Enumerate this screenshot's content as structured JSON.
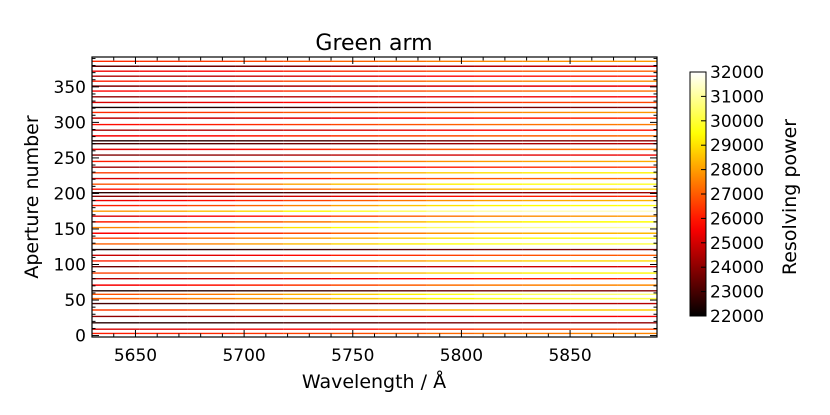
{
  "chart_data": {
    "type": "heatmap",
    "title": "Green arm",
    "xlabel": "Wavelength / Å",
    "ylabel": "Aperture number",
    "xlim": [
      5630,
      5890
    ],
    "ylim": [
      -2,
      392
    ],
    "xticks": [
      5650,
      5700,
      5750,
      5800,
      5850
    ],
    "yticks": [
      0,
      50,
      100,
      150,
      200,
      250,
      300,
      350
    ],
    "grid": false,
    "colorbar": {
      "label": "Resolving power",
      "colormap": "hot",
      "range": [
        22000,
        32000
      ],
      "ticks": [
        22000,
        23000,
        24000,
        25000,
        26000,
        27000,
        28000,
        29000,
        30000,
        31000,
        32000
      ]
    },
    "wavelength_samples": [
      5630,
      5652,
      5674,
      5696,
      5718,
      5740,
      5762,
      5784,
      5806,
      5828,
      5850,
      5872,
      5890
    ],
    "apertures": [
      {
        "aperture": 3,
        "resolving_power": [
          26000,
          26100,
          26200,
          26300,
          26500,
          26700,
          26900,
          27100,
          27300,
          27400,
          27500,
          27600,
          27600
        ]
      },
      {
        "aperture": 9,
        "resolving_power": [
          25000,
          25100,
          25200,
          25300,
          25500,
          25700,
          25900,
          26100,
          26300,
          26400,
          26500,
          26600,
          26600
        ]
      },
      {
        "aperture": 18,
        "resolving_power": [
          22500,
          22600,
          22700,
          22800,
          23000,
          23200,
          23400,
          23600,
          23800,
          23900,
          24000,
          24100,
          24100
        ]
      },
      {
        "aperture": 27,
        "resolving_power": [
          24000,
          24100,
          24200,
          24300,
          24500,
          24700,
          24900,
          25100,
          25300,
          25400,
          25500,
          25600,
          25600
        ]
      },
      {
        "aperture": 36,
        "resolving_power": [
          26500,
          26600,
          26800,
          27000,
          27300,
          27600,
          27900,
          28200,
          28400,
          28500,
          28600,
          28700,
          28700
        ]
      },
      {
        "aperture": 45,
        "resolving_power": [
          23000,
          23100,
          23200,
          23300,
          23500,
          23700,
          23900,
          24100,
          24300,
          24400,
          24500,
          24600,
          24600
        ]
      },
      {
        "aperture": 52,
        "resolving_power": [
          27000,
          27200,
          27400,
          27700,
          28000,
          28400,
          28800,
          29200,
          29600,
          29800,
          30000,
          30100,
          30100
        ]
      },
      {
        "aperture": 58,
        "resolving_power": [
          26800,
          27000,
          27300,
          27600,
          28000,
          28500,
          29000,
          29500,
          30000,
          30300,
          30500,
          30600,
          30600
        ]
      },
      {
        "aperture": 63,
        "resolving_power": [
          22300,
          22400,
          22500,
          22600,
          22800,
          23000,
          23200,
          23400,
          23600,
          23700,
          23800,
          23900,
          23900
        ]
      },
      {
        "aperture": 71,
        "resolving_power": [
          25500,
          25600,
          25800,
          26000,
          26300,
          26600,
          26900,
          27200,
          27400,
          27500,
          27600,
          27700,
          27700
        ]
      },
      {
        "aperture": 80,
        "resolving_power": [
          24500,
          24600,
          24700,
          24900,
          25100,
          25300,
          25500,
          25700,
          25900,
          26000,
          26100,
          26200,
          26200
        ]
      },
      {
        "aperture": 88,
        "resolving_power": [
          26500,
          26700,
          26900,
          27200,
          27500,
          27900,
          28300,
          28700,
          29000,
          29200,
          29300,
          29400,
          29400
        ]
      },
      {
        "aperture": 97,
        "resolving_power": [
          23500,
          23600,
          23700,
          23800,
          24000,
          24200,
          24400,
          24600,
          24800,
          24900,
          25000,
          25100,
          25100
        ]
      },
      {
        "aperture": 105,
        "resolving_power": [
          26000,
          26200,
          26400,
          26700,
          27000,
          27400,
          27800,
          28200,
          28500,
          28700,
          28800,
          28900,
          28900
        ]
      },
      {
        "aperture": 113,
        "resolving_power": [
          24800,
          24900,
          25100,
          25300,
          25600,
          25900,
          26200,
          26500,
          26700,
          26800,
          26900,
          27000,
          27000
        ]
      },
      {
        "aperture": 121,
        "resolving_power": [
          22400,
          22500,
          22600,
          22700,
          22900,
          23100,
          23300,
          23500,
          23700,
          23800,
          23900,
          24000,
          24000
        ]
      },
      {
        "aperture": 129,
        "resolving_power": [
          27000,
          27200,
          27500,
          27800,
          28200,
          28600,
          29000,
          29400,
          29700,
          29900,
          30000,
          30100,
          30100
        ]
      },
      {
        "aperture": 137,
        "resolving_power": [
          26500,
          26700,
          27000,
          27300,
          27700,
          28100,
          28500,
          28900,
          29200,
          29400,
          29500,
          29600,
          29600
        ]
      },
      {
        "aperture": 144,
        "resolving_power": [
          25500,
          25700,
          25900,
          26200,
          26500,
          26900,
          27300,
          27700,
          28000,
          28200,
          28300,
          28400,
          28400
        ]
      },
      {
        "aperture": 152,
        "resolving_power": [
          27500,
          27700,
          28000,
          28400,
          28800,
          29300,
          29800,
          30300,
          30700,
          30900,
          31000,
          31100,
          31100
        ]
      },
      {
        "aperture": 160,
        "resolving_power": [
          26000,
          26200,
          26500,
          26800,
          27200,
          27700,
          28200,
          28700,
          29100,
          29300,
          29400,
          29500,
          29500
        ]
      },
      {
        "aperture": 168,
        "resolving_power": [
          25000,
          25200,
          25400,
          25700,
          26000,
          26400,
          26800,
          27200,
          27500,
          27700,
          27800,
          27900,
          27900
        ]
      },
      {
        "aperture": 175,
        "resolving_power": [
          27800,
          28000,
          28300,
          28700,
          29100,
          29600,
          30100,
          30600,
          31000,
          31200,
          31300,
          31400,
          31400
        ]
      },
      {
        "aperture": 183,
        "resolving_power": [
          26000,
          26200,
          26500,
          26900,
          27300,
          27800,
          28300,
          28800,
          29200,
          29400,
          29500,
          29600,
          29600
        ]
      },
      {
        "aperture": 190,
        "resolving_power": [
          25300,
          25500,
          25700,
          26000,
          26400,
          26800,
          27200,
          27600,
          27900,
          28100,
          28200,
          28300,
          28300
        ]
      },
      {
        "aperture": 196,
        "resolving_power": [
          24000,
          24100,
          24300,
          24500,
          24800,
          25100,
          25400,
          25700,
          25900,
          26000,
          26100,
          26200,
          26200
        ]
      },
      {
        "aperture": 201,
        "resolving_power": [
          22600,
          22700,
          22800,
          22900,
          23100,
          23300,
          23500,
          23700,
          23900,
          24000,
          24100,
          24200,
          24200
        ]
      },
      {
        "aperture": 206,
        "resolving_power": [
          25800,
          26000,
          26200,
          26500,
          26800,
          27200,
          27600,
          28000,
          28300,
          28500,
          28600,
          28700,
          28700
        ]
      },
      {
        "aperture": 213,
        "resolving_power": [
          26800,
          27000,
          27200,
          27500,
          27900,
          28300,
          28700,
          29100,
          29400,
          29600,
          29700,
          29800,
          29800
        ]
      },
      {
        "aperture": 221,
        "resolving_power": [
          25000,
          25100,
          25300,
          25500,
          25800,
          26100,
          26400,
          26700,
          26900,
          27000,
          27100,
          27200,
          27200
        ]
      },
      {
        "aperture": 229,
        "resolving_power": [
          26500,
          26600,
          26800,
          27100,
          27400,
          27800,
          28200,
          28600,
          28900,
          29100,
          29200,
          29300,
          29300
        ]
      },
      {
        "aperture": 237,
        "resolving_power": [
          24200,
          24300,
          24500,
          24700,
          25000,
          25300,
          25600,
          25900,
          26100,
          26200,
          26300,
          26400,
          26400
        ]
      },
      {
        "aperture": 245,
        "resolving_power": [
          26000,
          26100,
          26300,
          26500,
          26800,
          27100,
          27400,
          27700,
          27900,
          28000,
          28100,
          28200,
          28200
        ]
      },
      {
        "aperture": 254,
        "resolving_power": [
          23800,
          23900,
          24000,
          24100,
          24300,
          24500,
          24700,
          24900,
          25100,
          25200,
          25300,
          25400,
          25400
        ]
      },
      {
        "aperture": 262,
        "resolving_power": [
          25200,
          25300,
          25500,
          25700,
          26000,
          26300,
          26600,
          26900,
          27100,
          27200,
          27300,
          27400,
          27400
        ]
      },
      {
        "aperture": 270,
        "resolving_power": [
          23000,
          23100,
          23200,
          23300,
          23500,
          23700,
          23900,
          24100,
          24300,
          24400,
          24500,
          24600,
          24600
        ]
      },
      {
        "aperture": 274,
        "resolving_power": [
          22400,
          22500,
          22600,
          22700,
          22900,
          23100,
          23300,
          23500,
          23700,
          23800,
          23900,
          24000,
          24000
        ]
      },
      {
        "aperture": 281,
        "resolving_power": [
          25500,
          25600,
          25700,
          25900,
          26100,
          26300,
          26500,
          26700,
          26900,
          27000,
          27100,
          27200,
          27200
        ]
      },
      {
        "aperture": 289,
        "resolving_power": [
          24300,
          24400,
          24500,
          24600,
          24800,
          25000,
          25200,
          25400,
          25600,
          25700,
          25800,
          25900,
          25900
        ]
      },
      {
        "aperture": 297,
        "resolving_power": [
          25800,
          25900,
          26000,
          26200,
          26400,
          26600,
          26800,
          27000,
          27200,
          27300,
          27400,
          27500,
          27500
        ]
      },
      {
        "aperture": 306,
        "resolving_power": [
          24600,
          24700,
          24800,
          24900,
          25100,
          25300,
          25500,
          25700,
          25900,
          26000,
          26100,
          26200,
          26200
        ]
      },
      {
        "aperture": 314,
        "resolving_power": [
          26200,
          26300,
          26400,
          26600,
          26800,
          27000,
          27200,
          27400,
          27600,
          27700,
          27800,
          27900,
          27900
        ]
      },
      {
        "aperture": 321,
        "resolving_power": [
          22200,
          22300,
          22400,
          22500,
          22700,
          22900,
          23100,
          23300,
          23500,
          23600,
          23700,
          23800,
          23800
        ]
      },
      {
        "aperture": 328,
        "resolving_power": [
          25000,
          25100,
          25200,
          25400,
          25600,
          25800,
          26000,
          26200,
          26400,
          26500,
          26600,
          26700,
          26700
        ]
      },
      {
        "aperture": 336,
        "resolving_power": [
          24000,
          24100,
          24200,
          24300,
          24500,
          24700,
          24900,
          25100,
          25300,
          25400,
          25500,
          25600,
          25600
        ]
      },
      {
        "aperture": 344,
        "resolving_power": [
          25600,
          25700,
          25800,
          26000,
          26200,
          26400,
          26600,
          26800,
          27000,
          27100,
          27200,
          27300,
          27300
        ]
      },
      {
        "aperture": 351,
        "resolving_power": [
          23800,
          23900,
          24000,
          24100,
          24300,
          24500,
          24700,
          24900,
          25100,
          25200,
          25300,
          25400,
          25400
        ]
      },
      {
        "aperture": 358,
        "resolving_power": [
          26000,
          26100,
          26200,
          26400,
          26600,
          26800,
          27000,
          27200,
          27400,
          27500,
          27600,
          27700,
          27700
        ]
      },
      {
        "aperture": 365,
        "resolving_power": [
          24400,
          24500,
          24600,
          24700,
          24900,
          25100,
          25300,
          25500,
          25700,
          25800,
          25900,
          26000,
          26000
        ]
      },
      {
        "aperture": 372,
        "resolving_power": [
          25400,
          25500,
          25600,
          25800,
          26000,
          26200,
          26400,
          26600,
          26800,
          26900,
          27000,
          27100,
          27100
        ]
      },
      {
        "aperture": 379,
        "resolving_power": [
          23300,
          23400,
          23500,
          23600,
          23800,
          24000,
          24200,
          24400,
          24600,
          24700,
          24800,
          24900,
          24900
        ]
      },
      {
        "aperture": 386,
        "resolving_power": [
          26200,
          26300,
          26400,
          26600,
          26800,
          27000,
          27200,
          27400,
          27600,
          27700,
          27800,
          27900,
          27900
        ]
      }
    ]
  }
}
